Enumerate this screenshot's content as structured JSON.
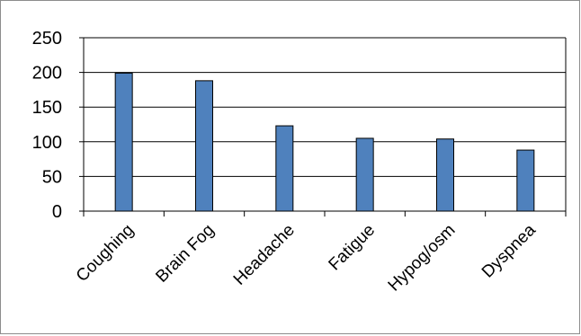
{
  "chart_data": {
    "type": "bar",
    "categories": [
      "Coughing",
      "Brain Fog",
      "Headache",
      "Fatigue",
      "Hypog/osm",
      "Dyspnea"
    ],
    "values": [
      199,
      188,
      123,
      105,
      104,
      88
    ],
    "ylim": [
      0,
      250
    ],
    "yticks": [
      0,
      50,
      100,
      150,
      200,
      250
    ],
    "grid": true,
    "legend": "none",
    "colors": {
      "bar": "#4f81bd",
      "bar_edge": "#000000",
      "grid": "#000000",
      "axis": "#000000",
      "frame": "#8c8c8c"
    }
  }
}
